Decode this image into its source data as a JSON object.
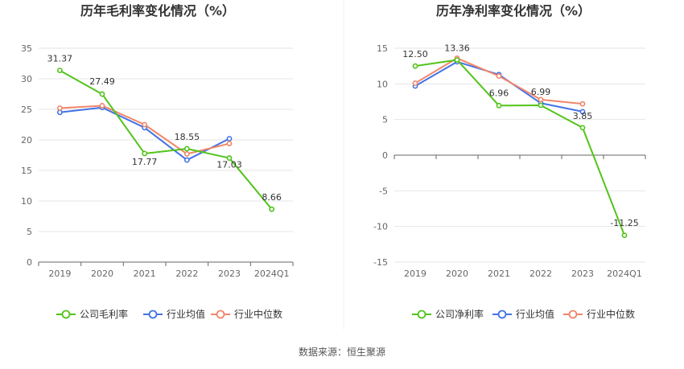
{
  "source_label": "数据来源：恒生聚源",
  "colors": {
    "company": "#52c41a",
    "avg": "#4472e6",
    "median": "#f0866a",
    "grid": "#e6e6e6",
    "axis": "#999999",
    "text": "#666666"
  },
  "chart_data": [
    {
      "type": "line",
      "title": "历年毛利率变化情况（%）",
      "categories": [
        "2019",
        "2020",
        "2021",
        "2022",
        "2023",
        "2024Q1"
      ],
      "ylim": [
        0,
        35
      ],
      "yticks": [
        "0",
        "5",
        "10",
        "15",
        "20",
        "25",
        "30",
        "35"
      ],
      "grid": true,
      "legend": "bottom",
      "series": [
        {
          "name": "公司毛利率",
          "values": [
            31.37,
            27.49,
            17.77,
            18.55,
            17.03,
            8.66
          ],
          "labels": [
            "31.37",
            "27.49",
            "17.77",
            "18.55",
            "17.03",
            "8.66"
          ]
        },
        {
          "name": "行业均值",
          "values": [
            24.5,
            25.3,
            22.0,
            16.7,
            20.2,
            null
          ]
        },
        {
          "name": "行业中位数",
          "values": [
            25.2,
            25.6,
            22.5,
            17.7,
            19.4,
            null
          ]
        }
      ]
    },
    {
      "type": "line",
      "title": "历年净利率变化情况（%）",
      "categories": [
        "2019",
        "2020",
        "2021",
        "2022",
        "2023",
        "2024Q1"
      ],
      "ylim": [
        -15,
        15
      ],
      "yticks": [
        "-15",
        "-10",
        "-5",
        "0",
        "5",
        "10",
        "15"
      ],
      "grid": true,
      "legend": "bottom",
      "series": [
        {
          "name": "公司净利率",
          "values": [
            12.5,
            13.36,
            6.96,
            6.99,
            3.85,
            -11.25
          ],
          "labels": [
            "12.50",
            "13.36",
            "6.96",
            "6.99",
            "3.85",
            "-11.25"
          ]
        },
        {
          "name": "行业均值",
          "values": [
            9.7,
            13.1,
            11.3,
            7.3,
            6.1,
            null
          ]
        },
        {
          "name": "行业中位数",
          "values": [
            10.1,
            13.6,
            11.1,
            7.8,
            7.2,
            null
          ]
        }
      ]
    }
  ]
}
